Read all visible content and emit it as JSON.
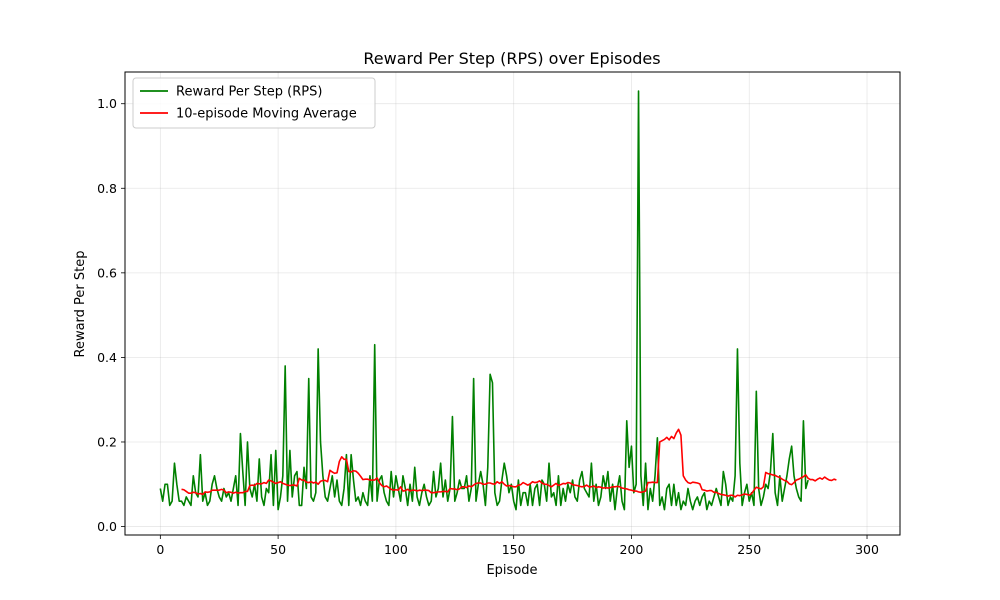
{
  "chart_data": {
    "type": "line",
    "title": "Reward Per Step (RPS) over Episodes",
    "xlabel": "Episode",
    "ylabel": "Reward Per Step",
    "xlim": [
      -15,
      314
    ],
    "ylim": [
      -0.02,
      1.075
    ],
    "xticks": [
      0,
      50,
      100,
      150,
      200,
      250,
      300
    ],
    "yticks": [
      0.0,
      0.2,
      0.4,
      0.6,
      0.8,
      1.0
    ],
    "grid": true,
    "legend_position": "upper-left",
    "series": [
      {
        "name": "Reward Per Step (RPS)",
        "color": "#008000",
        "values": [
          0.09,
          0.06,
          0.1,
          0.1,
          0.05,
          0.06,
          0.15,
          0.1,
          0.06,
          0.06,
          0.05,
          0.07,
          0.06,
          0.05,
          0.12,
          0.08,
          0.07,
          0.17,
          0.06,
          0.08,
          0.05,
          0.06,
          0.1,
          0.12,
          0.09,
          0.07,
          0.06,
          0.09,
          0.07,
          0.08,
          0.06,
          0.09,
          0.12,
          0.05,
          0.22,
          0.13,
          0.05,
          0.2,
          0.09,
          0.07,
          0.1,
          0.06,
          0.16,
          0.07,
          0.05,
          0.09,
          0.08,
          0.17,
          0.05,
          0.18,
          0.04,
          0.07,
          0.12,
          0.38,
          0.06,
          0.18,
          0.07,
          0.12,
          0.13,
          0.05,
          0.05,
          0.14,
          0.09,
          0.35,
          0.07,
          0.06,
          0.08,
          0.42,
          0.2,
          0.12,
          0.07,
          0.06,
          0.09,
          0.12,
          0.07,
          0.11,
          0.06,
          0.05,
          0.09,
          0.17,
          0.05,
          0.17,
          0.11,
          0.06,
          0.07,
          0.05,
          0.08,
          0.06,
          0.05,
          0.12,
          0.06,
          0.43,
          0.06,
          0.11,
          0.12,
          0.08,
          0.06,
          0.05,
          0.13,
          0.07,
          0.12,
          0.09,
          0.06,
          0.12,
          0.09,
          0.05,
          0.1,
          0.06,
          0.14,
          0.07,
          0.05,
          0.08,
          0.1,
          0.07,
          0.05,
          0.06,
          0.13,
          0.07,
          0.09,
          0.15,
          0.07,
          0.11,
          0.06,
          0.09,
          0.26,
          0.06,
          0.08,
          0.11,
          0.09,
          0.09,
          0.12,
          0.06,
          0.09,
          0.35,
          0.06,
          0.1,
          0.13,
          0.1,
          0.05,
          0.14,
          0.36,
          0.34,
          0.08,
          0.05,
          0.06,
          0.11,
          0.15,
          0.12,
          0.08,
          0.1,
          0.06,
          0.04,
          0.11,
          0.05,
          0.08,
          0.08,
          0.05,
          0.1,
          0.05,
          0.09,
          0.1,
          0.05,
          0.11,
          0.1,
          0.06,
          0.15,
          0.07,
          0.08,
          0.05,
          0.12,
          0.05,
          0.09,
          0.06,
          0.1,
          0.08,
          0.11,
          0.07,
          0.06,
          0.11,
          0.13,
          0.09,
          0.08,
          0.07,
          0.15,
          0.06,
          0.1,
          0.05,
          0.07,
          0.12,
          0.09,
          0.13,
          0.06,
          0.1,
          0.04,
          0.09,
          0.12,
          0.06,
          0.04,
          0.25,
          0.14,
          0.19,
          0.08,
          0.1,
          1.03,
          0.12,
          0.05,
          0.15,
          0.04,
          0.09,
          0.06,
          0.12,
          0.21,
          0.05,
          0.07,
          0.04,
          0.09,
          0.1,
          0.05,
          0.1,
          0.05,
          0.08,
          0.04,
          0.06,
          0.05,
          0.09,
          0.06,
          0.04,
          0.06,
          0.07,
          0.05,
          0.07,
          0.08,
          0.04,
          0.06,
          0.05,
          0.07,
          0.09,
          0.07,
          0.05,
          0.13,
          0.1,
          0.05,
          0.07,
          0.06,
          0.12,
          0.42,
          0.15,
          0.05,
          0.08,
          0.1,
          0.06,
          0.08,
          0.05,
          0.32,
          0.09,
          0.05,
          0.07,
          0.1,
          0.09,
          0.13,
          0.22,
          0.08,
          0.05,
          0.12,
          0.06,
          0.09,
          0.12,
          0.16,
          0.19,
          0.12,
          0.09,
          0.07,
          0.06,
          0.25,
          0.09,
          0.11
        ]
      },
      {
        "name": "10-episode Moving Average",
        "color": "#ff0000",
        "start": 9,
        "values": [
          0.088,
          0.087,
          0.083,
          0.079,
          0.079,
          0.081,
          0.08,
          0.077,
          0.078,
          0.076,
          0.082,
          0.081,
          0.082,
          0.086,
          0.086,
          0.086,
          0.086,
          0.088,
          0.086,
          0.08,
          0.082,
          0.081,
          0.079,
          0.081,
          0.079,
          0.08,
          0.08,
          0.083,
          0.083,
          0.097,
          0.098,
          0.097,
          0.102,
          0.101,
          0.101,
          0.104,
          0.102,
          0.11,
          0.108,
          0.105,
          0.102,
          0.104,
          0.106,
          0.102,
          0.1,
          0.098,
          0.097,
          0.098,
          0.098,
          0.096,
          0.114,
          0.11,
          0.11,
          0.105,
          0.104,
          0.106,
          0.103,
          0.105,
          0.1,
          0.107,
          0.109,
          0.109,
          0.106,
          0.133,
          0.129,
          0.126,
          0.127,
          0.154,
          0.165,
          0.159,
          0.159,
          0.13,
          0.129,
          0.132,
          0.131,
          0.126,
          0.119,
          0.111,
          0.112,
          0.112,
          0.11,
          0.11,
          0.11,
          0.115,
          0.104,
          0.097,
          0.094,
          0.096,
          0.092,
          0.088,
          0.086,
          0.087,
          0.086,
          0.094,
          0.084,
          0.085,
          0.088,
          0.084,
          0.086,
          0.086,
          0.084,
          0.086,
          0.085,
          0.086,
          0.086,
          0.085,
          0.08,
          0.08,
          0.081,
          0.082,
          0.082,
          0.083,
          0.083,
          0.082,
          0.09,
          0.089,
          0.089,
          0.087,
          0.089,
          0.094,
          0.094,
          0.092,
          0.096,
          0.094,
          0.098,
          0.102,
          0.103,
          0.103,
          0.1,
          0.1,
          0.103,
          0.103,
          0.101,
          0.1,
          0.106,
          0.102,
          0.106,
          0.1,
          0.096,
          0.097,
          0.096,
          0.094,
          0.094,
          0.098,
          0.099,
          0.104,
          0.101,
          0.098,
          0.101,
          0.106,
          0.104,
          0.105,
          0.108,
          0.103,
          0.1,
          0.1,
          0.097,
          0.094,
          0.098,
          0.102,
          0.097,
          0.099,
          0.102,
          0.101,
          0.104,
          0.103,
          0.099,
          0.098,
          0.097,
          0.095,
          0.094,
          0.095,
          0.098,
          0.094,
          0.094,
          0.096,
          0.092,
          0.094,
          0.093,
          0.091,
          0.092,
          0.091,
          0.092,
          0.094,
          0.094,
          0.095,
          0.094,
          0.091,
          0.09,
          0.089,
          0.087,
          0.086,
          0.084,
          0.084,
          0.082,
          0.081,
          0.082,
          0.084,
          0.104,
          0.104,
          0.105,
          0.104,
          0.104,
          0.2,
          0.203,
          0.206,
          0.211,
          0.205,
          0.213,
          0.208,
          0.221,
          0.23,
          0.216,
          0.12,
          0.11,
          0.104,
          0.102,
          0.105,
          0.104,
          0.103,
          0.101,
          0.087,
          0.086,
          0.084,
          0.085,
          0.085,
          0.081,
          0.081,
          0.078,
          0.076,
          0.075,
          0.074,
          0.072,
          0.074,
          0.074,
          0.07,
          0.074,
          0.073,
          0.075,
          0.077,
          0.076,
          0.074,
          0.078,
          0.086,
          0.093,
          0.091,
          0.089,
          0.094,
          0.128,
          0.125,
          0.124,
          0.122,
          0.121,
          0.118,
          0.116,
          0.112,
          0.109,
          0.107,
          0.101,
          0.099,
          0.104,
          0.11,
          0.112,
          0.115,
          0.118,
          0.122,
          0.114,
          0.111,
          0.111,
          0.108,
          0.112,
          0.115,
          0.112,
          0.117,
          0.113,
          0.11,
          0.109,
          0.112,
          0.11
        ]
      }
    ]
  }
}
